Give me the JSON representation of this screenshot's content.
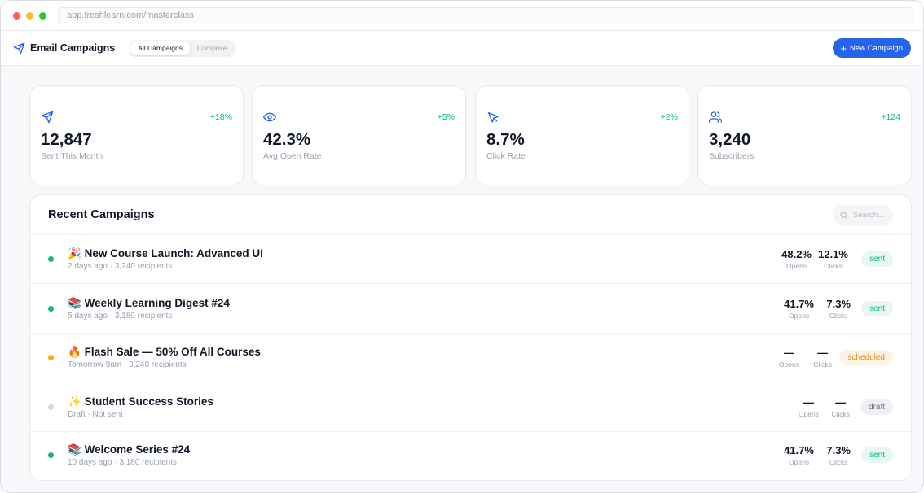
{
  "browser": {
    "url": "app.freshlearn.com/masterclass"
  },
  "header": {
    "title": "Email Campaigns",
    "tabs": [
      {
        "label": "All Campaigns",
        "active": true
      },
      {
        "label": "Compose",
        "active": false
      }
    ],
    "new_campaign_label": "New Campaign"
  },
  "stats": [
    {
      "icon": "send-icon",
      "delta": "+18%",
      "value": "12,847",
      "label": "Sent This Month"
    },
    {
      "icon": "eye-icon",
      "delta": "+5%",
      "value": "42.3%",
      "label": "Avg Open Rate"
    },
    {
      "icon": "cursor-click-icon",
      "delta": "+2%",
      "value": "8.7%",
      "label": "Click Rate"
    },
    {
      "icon": "users-icon",
      "delta": "+124",
      "value": "3,240",
      "label": "Subscribers"
    }
  ],
  "campaigns_panel": {
    "title": "Recent Campaigns",
    "search_placeholder": "Search...",
    "rows": [
      {
        "emoji": "🎉",
        "title": "New Course Launch: Advanced UI",
        "meta": "2 days ago · 3,240 recipients",
        "opens": "48.2%",
        "opens_label": "Opens",
        "clicks": "12.1%",
        "clicks_label": "Clicks",
        "status": "sent"
      },
      {
        "emoji": "📚",
        "title": "Weekly Learning Digest #24",
        "meta": "5 days ago · 3,180 recipients",
        "opens": "41.7%",
        "opens_label": "Opens",
        "clicks": "7.3%",
        "clicks_label": "Clicks",
        "status": "sent"
      },
      {
        "emoji": "🔥",
        "title": "Flash Sale — 50% Off All Courses",
        "meta": "Tomorrow 9am · 3,240 recipients",
        "opens": "—",
        "opens_label": "Opens",
        "clicks": "—",
        "clicks_label": "Clicks",
        "status": "scheduled"
      },
      {
        "emoji": "✨",
        "title": "Student Success Stories",
        "meta": "Draft · Not sent",
        "opens": "—",
        "opens_label": "Opens",
        "clicks": "—",
        "clicks_label": "Clicks",
        "status": "draft"
      },
      {
        "emoji": "📚",
        "title": "Welcome Series  #24",
        "meta": "10 days ago · 3,180 recipients",
        "opens": "41.7%",
        "opens_label": "Opens",
        "clicks": "7.3%",
        "clicks_label": "Clicks",
        "status": "sent"
      }
    ]
  },
  "colors": {
    "accent": "#2563eb",
    "positive": "#10b981",
    "status_sent_bg": "#e8f8f1",
    "status_sent_fg": "#10b981",
    "status_scheduled_bg": "#fef3e2",
    "status_scheduled_fg": "#e58a0e",
    "status_draft_bg": "#eef0f3",
    "status_draft_fg": "#6b7280",
    "dot_sent": "#10b981",
    "dot_scheduled": "#f5b301",
    "dot_draft": "#d4d8de"
  }
}
